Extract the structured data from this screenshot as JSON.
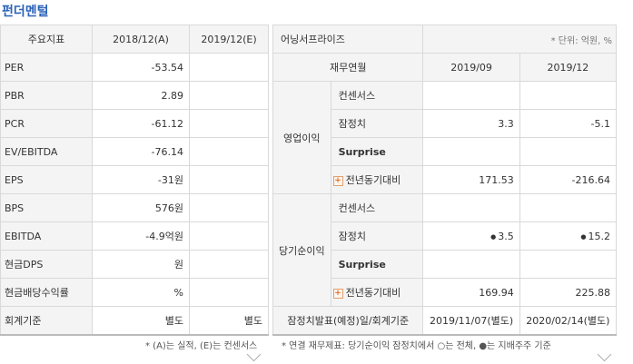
{
  "title": "펀더멘털",
  "left": {
    "headers": [
      "주요지표",
      "2018/12(A)",
      "2019/12(E)"
    ],
    "rows": [
      {
        "label": "PER",
        "v1": "-53.54",
        "v2": ""
      },
      {
        "label": "PBR",
        "v1": "2.89",
        "v2": ""
      },
      {
        "label": "PCR",
        "v1": "-61.12",
        "v2": ""
      },
      {
        "label": "EV/EBITDA",
        "v1": "-76.14",
        "v2": ""
      },
      {
        "label": "EPS",
        "v1": "-31원",
        "v2": ""
      },
      {
        "label": "BPS",
        "v1": "576원",
        "v2": ""
      },
      {
        "label": "EBITDA",
        "v1": "-4.9억원",
        "v2": ""
      },
      {
        "label": "현금DPS",
        "v1": "원",
        "v2": ""
      },
      {
        "label": "현금배당수익률",
        "v1": "%",
        "v2": ""
      },
      {
        "label": "회계기준",
        "v1": "별도",
        "v2": "별도"
      }
    ],
    "note": "* (A)는 실적, (E)는 컨센서스"
  },
  "right": {
    "title": "어닝서프라이즈",
    "unit": "* 단위: 억원, %",
    "headers": [
      "재무연월",
      "2019/09",
      "2019/12"
    ],
    "groups": [
      {
        "name": "영업이익",
        "rows": [
          {
            "label": "컨센서스",
            "v1": "",
            "v2": ""
          },
          {
            "label": "잠정치",
            "v1": "3.3",
            "v2": "-5.1"
          },
          {
            "label": "Surprise",
            "v1": "",
            "v2": ""
          },
          {
            "label": "전년동기대비",
            "v1": "171.53",
            "v2": "-216.64"
          }
        ]
      },
      {
        "name": "당기순이익",
        "rows": [
          {
            "label": "컨센서스",
            "v1": "",
            "v2": ""
          },
          {
            "label": "잠정치",
            "v1": "3.5",
            "v2": "15.2"
          },
          {
            "label": "Surprise",
            "v1": "",
            "v2": ""
          },
          {
            "label": "전년동기대비",
            "v1": "169.94",
            "v2": "225.88"
          }
        ]
      }
    ],
    "footer": {
      "label": "잠정치발표(예정)일/회계기준",
      "v1": "2019/11/07(별도)",
      "v2": "2020/02/14(별도)"
    },
    "note": "* 연결 재무제표: 당기순이익 잠정치에서 ○는 전체, ●는 지배주주 기준"
  }
}
